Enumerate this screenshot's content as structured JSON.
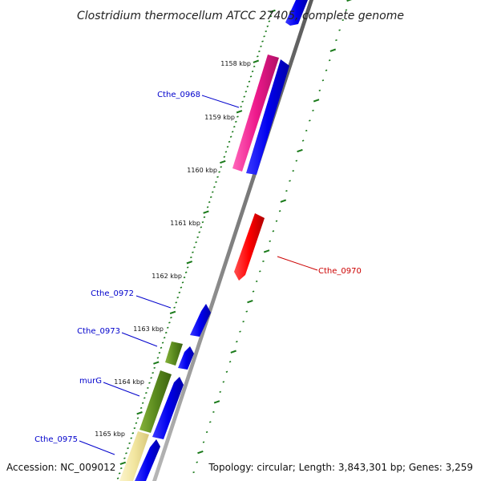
{
  "title": "Clostridium thermocellum ATCC 27405, complete genome",
  "accession": "Accession: NC_009012",
  "topology": "Topology: circular; Length: 3,843,301 bp; Genes: 3,259",
  "colors": {
    "backbone": "#808080",
    "tick": "#1a7a1a",
    "label_blue": "#0000cc",
    "label_red": "#cc0000",
    "cds_blue": "#0000ee",
    "cds_red": "#ff0000",
    "cds_pink": "#ee1a8c",
    "cds_olive": "#5a8a1e",
    "cds_pale": "#f2e6a0"
  },
  "kbp_ticks": [
    "1158 kbp",
    "1159 kbp",
    "1160 kbp",
    "1161 kbp",
    "1162 kbp",
    "1163 kbp",
    "1164 kbp",
    "1165 kbp"
  ],
  "gene_labels": [
    {
      "text": "Cthe_0968",
      "color": "label_blue"
    },
    {
      "text": "Cthe_0970",
      "color": "label_red"
    },
    {
      "text": "Cthe_0972",
      "color": "label_blue"
    },
    {
      "text": "Cthe_0973",
      "color": "label_blue"
    },
    {
      "text": "murG",
      "color": "label_blue"
    },
    {
      "text": "Cthe_0975",
      "color": "label_blue"
    }
  ]
}
